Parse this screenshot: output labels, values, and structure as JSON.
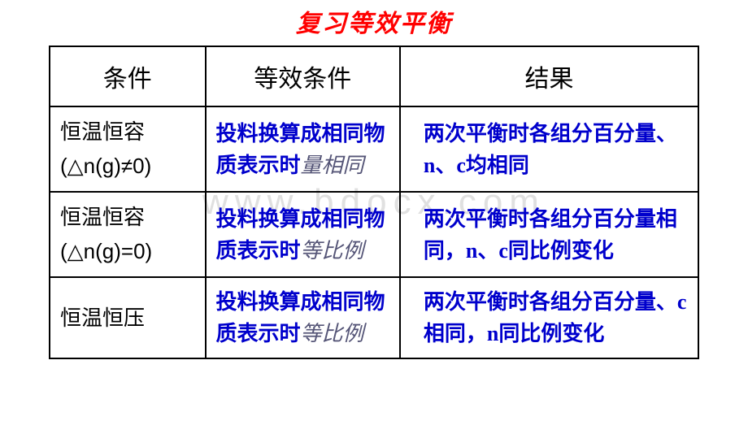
{
  "title": "复习等效平衡",
  "watermark": "www.bdocx.com",
  "headers": {
    "col1": "条件",
    "col2": "等效条件",
    "col3": "结果"
  },
  "rows": [
    {
      "condition_l1": "恒温恒容",
      "condition_l2": "(△n(g)≠0)",
      "equiv_main": "投料换算成相同物质表示时",
      "equiv_suffix": "量相同",
      "result": "两次平衡时各组分百分量、n、c均相同"
    },
    {
      "condition_l1": "恒温恒容",
      "condition_l2": "(△n(g)=0)",
      "equiv_main": "投料换算成相同物质表示时",
      "equiv_suffix": "等比例",
      "result": "两次平衡时各组分百分量相同，n、c同比例变化"
    },
    {
      "condition_l1": "恒温恒压",
      "condition_l2": "",
      "equiv_main": "投料换算成相同物质表示时",
      "equiv_suffix": "等比例",
      "result": "两次平衡时各组分百分量、c相同，n同比例变化"
    }
  ],
  "colors": {
    "title": "#ff0000",
    "header_text": "#000000",
    "condition_text": "#000000",
    "content_text": "#0000cc",
    "suffix_text": "#555577",
    "border": "#000000",
    "background": "#ffffff",
    "watermark": "#cccccc"
  },
  "fonts": {
    "title_size": 30,
    "header_size": 30,
    "cell_size": 26
  }
}
